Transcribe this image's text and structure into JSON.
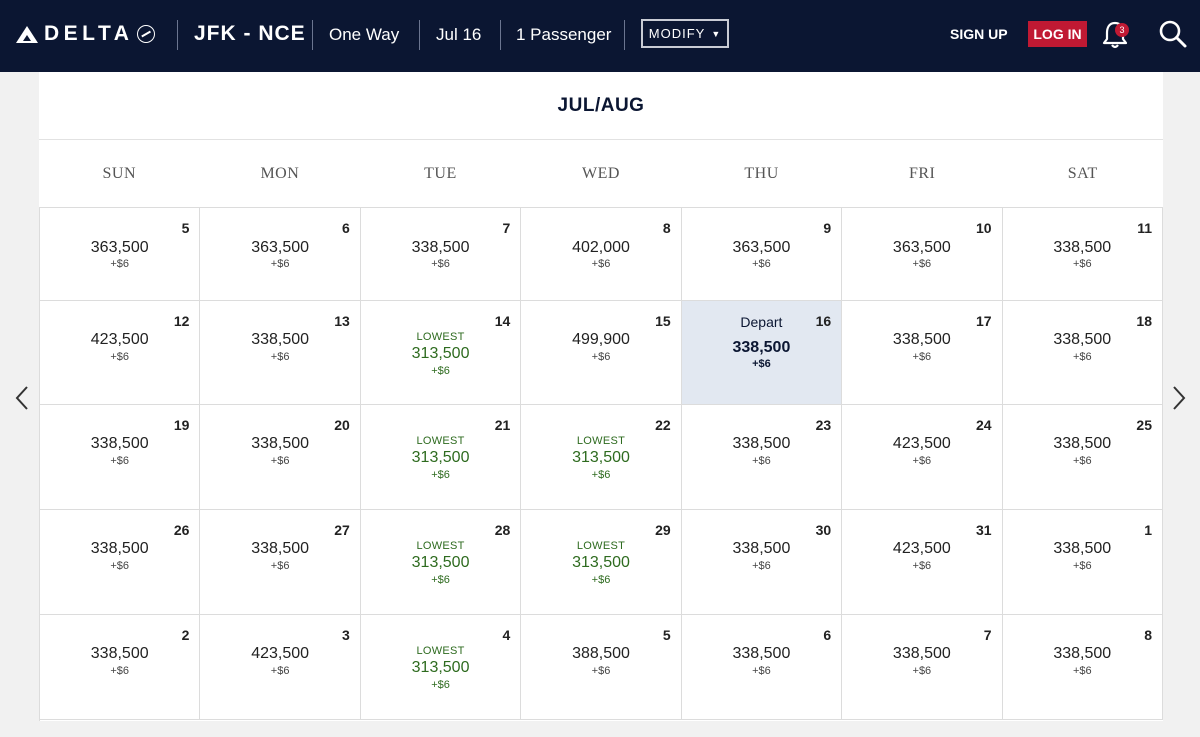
{
  "header": {
    "brand": "DELTA",
    "route": "JFK - NCE",
    "trip_type": "One Way",
    "date": "Jul 16",
    "passengers": "1 Passenger",
    "modify_label": "MODIFY",
    "signup_label": "SIGN UP",
    "login_label": "LOG IN",
    "notification_count": "3",
    "colors": {
      "bar": "#0b1632",
      "login": "#c01933"
    }
  },
  "calendar": {
    "month_title": "JUL/AUG",
    "weekdays": [
      "SUN",
      "MON",
      "TUE",
      "WED",
      "THU",
      "FRI",
      "SAT"
    ],
    "lowest_label": "LOWEST",
    "depart_label": "Depart",
    "colors": {
      "lowest": "#2e6b1f",
      "selected_bg": "#e2e8f1"
    },
    "weeks": [
      [
        {
          "day": "5",
          "miles": "363,500",
          "fee": "+$6"
        },
        {
          "day": "6",
          "miles": "363,500",
          "fee": "+$6"
        },
        {
          "day": "7",
          "miles": "338,500",
          "fee": "+$6"
        },
        {
          "day": "8",
          "miles": "402,000",
          "fee": "+$6"
        },
        {
          "day": "9",
          "miles": "363,500",
          "fee": "+$6"
        },
        {
          "day": "10",
          "miles": "363,500",
          "fee": "+$6"
        },
        {
          "day": "11",
          "miles": "338,500",
          "fee": "+$6"
        }
      ],
      [
        {
          "day": "12",
          "miles": "423,500",
          "fee": "+$6"
        },
        {
          "day": "13",
          "miles": "338,500",
          "fee": "+$6"
        },
        {
          "day": "14",
          "miles": "313,500",
          "fee": "+$6",
          "lowest": true
        },
        {
          "day": "15",
          "miles": "499,900",
          "fee": "+$6"
        },
        {
          "day": "16",
          "miles": "338,500",
          "fee": "+$6",
          "selected": true
        },
        {
          "day": "17",
          "miles": "338,500",
          "fee": "+$6"
        },
        {
          "day": "18",
          "miles": "338,500",
          "fee": "+$6"
        }
      ],
      [
        {
          "day": "19",
          "miles": "338,500",
          "fee": "+$6"
        },
        {
          "day": "20",
          "miles": "338,500",
          "fee": "+$6"
        },
        {
          "day": "21",
          "miles": "313,500",
          "fee": "+$6",
          "lowest": true
        },
        {
          "day": "22",
          "miles": "313,500",
          "fee": "+$6",
          "lowest": true
        },
        {
          "day": "23",
          "miles": "338,500",
          "fee": "+$6"
        },
        {
          "day": "24",
          "miles": "423,500",
          "fee": "+$6"
        },
        {
          "day": "25",
          "miles": "338,500",
          "fee": "+$6"
        }
      ],
      [
        {
          "day": "26",
          "miles": "338,500",
          "fee": "+$6"
        },
        {
          "day": "27",
          "miles": "338,500",
          "fee": "+$6"
        },
        {
          "day": "28",
          "miles": "313,500",
          "fee": "+$6",
          "lowest": true
        },
        {
          "day": "29",
          "miles": "313,500",
          "fee": "+$6",
          "lowest": true
        },
        {
          "day": "30",
          "miles": "338,500",
          "fee": "+$6"
        },
        {
          "day": "31",
          "miles": "423,500",
          "fee": "+$6"
        },
        {
          "day": "1",
          "miles": "338,500",
          "fee": "+$6"
        }
      ],
      [
        {
          "day": "2",
          "miles": "338,500",
          "fee": "+$6"
        },
        {
          "day": "3",
          "miles": "423,500",
          "fee": "+$6"
        },
        {
          "day": "4",
          "miles": "313,500",
          "fee": "+$6",
          "lowest": true
        },
        {
          "day": "5",
          "miles": "388,500",
          "fee": "+$6"
        },
        {
          "day": "6",
          "miles": "338,500",
          "fee": "+$6"
        },
        {
          "day": "7",
          "miles": "338,500",
          "fee": "+$6"
        },
        {
          "day": "8",
          "miles": "338,500",
          "fee": "+$6"
        }
      ]
    ]
  }
}
